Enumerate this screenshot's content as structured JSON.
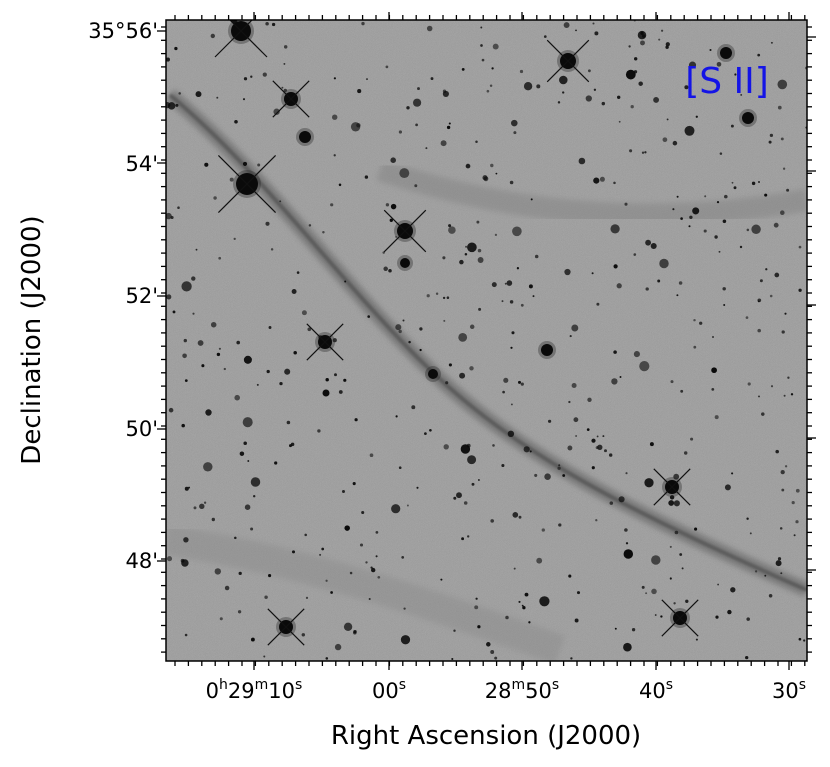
{
  "figure": {
    "filter_label": "[S II]",
    "filter_label_color": "#1414e6",
    "x_axis": {
      "title": "Right Ascension (J2000)",
      "ticks": [
        {
          "h": "0",
          "m": "29",
          "s": "10"
        },
        {
          "s": "00"
        },
        {
          "m": "28",
          "s": "50"
        },
        {
          "s": "40"
        },
        {
          "s": "30"
        }
      ]
    },
    "y_axis": {
      "title": "Declination (J2000)",
      "ticks": [
        "35°56'",
        "54'",
        "52'",
        "50'",
        "48'"
      ]
    },
    "image": {
      "description_icon": "starfield-image",
      "background_color": "#9a9a9a",
      "filament_color": "#6e6e6e",
      "star_color": "#0a0a0a"
    }
  }
}
